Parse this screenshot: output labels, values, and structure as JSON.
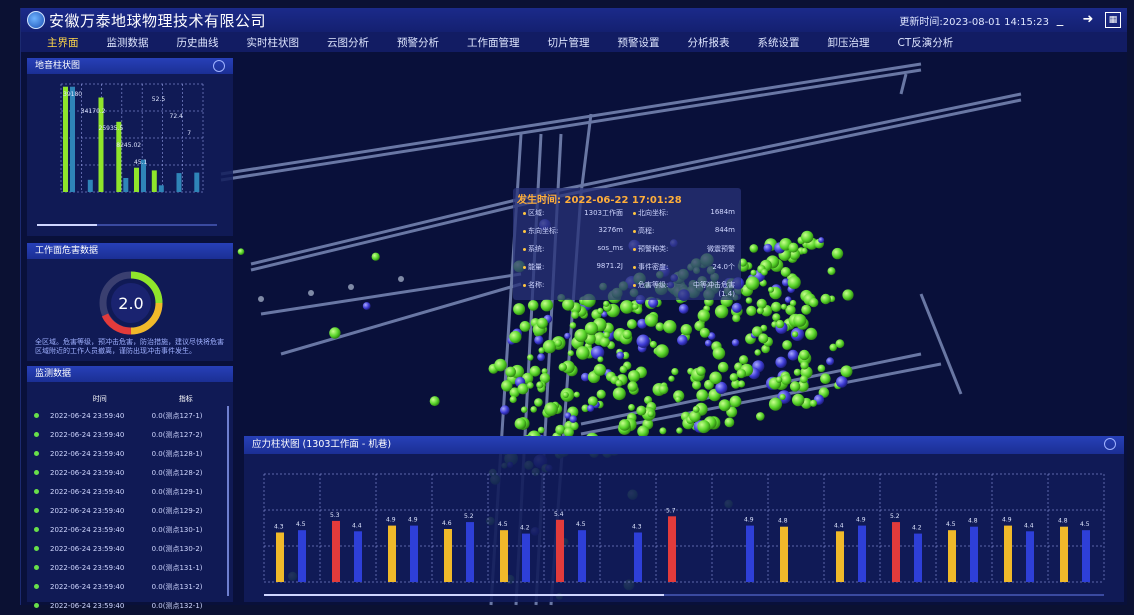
{
  "window": {
    "title": "安徽万泰地球物理技术有限公司",
    "updated_at": "更新时间:2023-08-01 14:15:23"
  },
  "menu": [
    {
      "label": "主界面",
      "active": true
    },
    {
      "label": "监测数据"
    },
    {
      "label": "历史曲线"
    },
    {
      "label": "实时柱状图"
    },
    {
      "label": "云图分析"
    },
    {
      "label": "预警分析"
    },
    {
      "label": "工作面管理"
    },
    {
      "label": "切片管理"
    },
    {
      "label": "预警设置"
    },
    {
      "label": "分析报表"
    },
    {
      "label": "系统设置"
    },
    {
      "label": "卸压治理"
    },
    {
      "label": "CT反演分析"
    }
  ],
  "panels": {
    "sound": {
      "title": "地音柱状图"
    },
    "risk": {
      "title": "工作面危害数据",
      "value": "2.0",
      "note": "全区域。危害等级，预冲击危害，防治措施，建议尽快将危害区域附近的工作人员撤离，谨防出现冲击事件发生。"
    },
    "monitor": {
      "title": "监测数据",
      "headers": [
        "时间",
        "指标"
      ],
      "rows": [
        [
          "2022-06-24 23:59:40",
          "0.0(测点127-1)"
        ],
        [
          "2022-06-24 23:59:40",
          "0.0(测点127-2)"
        ],
        [
          "2022-06-24 23:59:40",
          "0.0(测点128-1)"
        ],
        [
          "2022-06-24 23:59:40",
          "0.0(测点128-2)"
        ],
        [
          "2022-06-24 23:59:40",
          "0.0(测点129-1)"
        ],
        [
          "2022-06-24 23:59:40",
          "0.0(测点129-2)"
        ],
        [
          "2022-06-24 23:59:40",
          "0.0(测点130-1)"
        ],
        [
          "2022-06-24 23:59:40",
          "0.0(测点130-2)"
        ],
        [
          "2022-06-24 23:59:40",
          "0.0(测点131-1)"
        ],
        [
          "2022-06-24 23:59:40",
          "0.0(测点131-2)"
        ],
        [
          "2022-06-24 23:59:40",
          "0.0(测点132-1)"
        ]
      ]
    },
    "stress": {
      "title": "应力柱状图 (1303工作面 - 机巷)"
    }
  },
  "tooltip": {
    "title": "发生时间: 2022-06-22 17:01:28",
    "rows": [
      {
        "k1": "区域:",
        "v1": "1303工作面",
        "k2": "北向坐标:",
        "v2": "1684m"
      },
      {
        "k1": "东向坐标:",
        "v1": "3276m",
        "k2": "高程:",
        "v2": "844m"
      },
      {
        "k1": "系统:",
        "v1": "sos_ms",
        "k2": "预警种类:",
        "v2": "微震预警"
      },
      {
        "k1": "能量:",
        "v1": "9871.2J",
        "k2": "事件密度:",
        "v2": "24.0个"
      },
      {
        "k1": "名称:",
        "v1": "",
        "k2": "危害等级:",
        "v2": "中等冲击危害(1.4)"
      }
    ]
  },
  "chart_data": [
    {
      "type": "bar",
      "title": "地音柱状图",
      "ylim_left": [
        0,
        40000
      ],
      "ylim_right": [
        0,
        400
      ],
      "series": [
        {
          "color": "#8fe52b",
          "values": [
            39000,
            0,
            35000,
            26000,
            9000,
            8000,
            0,
            0
          ]
        },
        {
          "color": "#2f85b8",
          "values": [
            39000,
            4500,
            0,
            5200,
            12000,
            2500,
            7000,
            7200
          ]
        }
      ],
      "data_labels": [
        "39180",
        "34170.2",
        "25935.5",
        "8245.02",
        "45.1",
        "52.5",
        "72.4",
        "7"
      ]
    },
    {
      "type": "bar",
      "title": "应力柱状图 (1303工作面 - 机巷)",
      "ylim": [
        0,
        15
      ],
      "groups": [
        {
          "a": 4.3,
          "b": 4.5,
          "ca": "#f0b92a"
        },
        {
          "a": 5.3,
          "b": 4.4,
          "ca": "#e23b3b"
        },
        {
          "a": 4.9,
          "b": 4.9,
          "ca": "#f0b92a"
        },
        {
          "a": 4.6,
          "b": 5.2,
          "ca": "#f0b92a"
        },
        {
          "a": 4.5,
          "b": 4.2,
          "ca": "#f0b92a"
        },
        {
          "a": 5.4,
          "b": 4.5,
          "ca": "#e23b3b"
        },
        {
          "a": 0,
          "b": 4.3,
          "ca": "#f0b92a"
        },
        {
          "a": 5.7,
          "b": 0,
          "ca": "#e23b3b"
        },
        {
          "a": 0,
          "b": 4.9,
          "ca": "#f0b92a"
        },
        {
          "a": 4.8,
          "b": 0,
          "ca": "#f0b92a"
        },
        {
          "a": 4.4,
          "b": 4.9,
          "ca": "#f0b92a"
        },
        {
          "a": 5.2,
          "b": 4.2,
          "ca": "#e23b3b"
        },
        {
          "a": 4.5,
          "b": 4.8,
          "ca": "#f0b92a"
        },
        {
          "a": 4.9,
          "b": 4.4,
          "ca": "#f0b92a"
        },
        {
          "a": 4.8,
          "b": 4.5,
          "ca": "#f0b92a"
        }
      ]
    }
  ]
}
